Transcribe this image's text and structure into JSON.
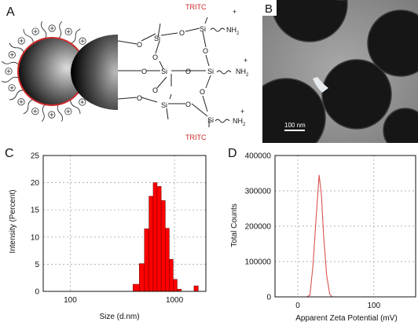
{
  "panels": {
    "a": {
      "letter": "A",
      "labels": {
        "si": "Si",
        "o": "O",
        "nh2": "NH",
        "nh2_sub": "2",
        "plus": "+",
        "tritc": "TRITC"
      }
    },
    "b": {
      "letter": "B",
      "scale_label": "100 nm"
    },
    "c": {
      "letter": "C"
    },
    "d": {
      "letter": "D"
    }
  },
  "chart_data": [
    {
      "panel": "C",
      "type": "bar",
      "xlabel": "Size (d.nm)",
      "ylabel": "Intensity (Percent)",
      "xscale": "log",
      "xlim": [
        55,
        2000
      ],
      "ylim": [
        0,
        25
      ],
      "xticks": [
        100,
        1000
      ],
      "xtick_labels": [
        "100",
        "1000"
      ],
      "yticks": [
        0,
        5,
        10,
        15,
        20,
        25
      ],
      "grid": true,
      "bar_color": "#ff0000",
      "bins": [
        {
          "x0": 400,
          "x1": 460,
          "value": 1.3
        },
        {
          "x0": 460,
          "x1": 515,
          "value": 5.1
        },
        {
          "x0": 515,
          "x1": 570,
          "value": 11.5
        },
        {
          "x0": 570,
          "x1": 625,
          "value": 17.5
        },
        {
          "x0": 625,
          "x1": 680,
          "value": 20.0
        },
        {
          "x0": 680,
          "x1": 745,
          "value": 19.3
        },
        {
          "x0": 745,
          "x1": 815,
          "value": 16.7
        },
        {
          "x0": 815,
          "x1": 890,
          "value": 11.6
        },
        {
          "x0": 890,
          "x1": 970,
          "value": 5.9
        },
        {
          "x0": 970,
          "x1": 1060,
          "value": 2.2
        },
        {
          "x0": 1060,
          "x1": 1160,
          "value": 0.4
        },
        {
          "x0": 1540,
          "x1": 1690,
          "value": 1.0
        }
      ]
    },
    {
      "panel": "D",
      "type": "line",
      "xlabel": "Apparent Zeta Potential (mV)",
      "ylabel": "Total Counts",
      "xlim": [
        -30,
        155
      ],
      "ylim": [
        0,
        400000
      ],
      "xticks": [
        0,
        100
      ],
      "yticks": [
        0,
        100000,
        200000,
        300000,
        400000
      ],
      "grid": true,
      "line_color": "#d9534f",
      "x": [
        12,
        16,
        20,
        24,
        28,
        31,
        34,
        38,
        42,
        45
      ],
      "y": [
        0,
        5000,
        90000,
        220000,
        345000,
        290000,
        170000,
        60000,
        8000,
        0
      ]
    }
  ]
}
